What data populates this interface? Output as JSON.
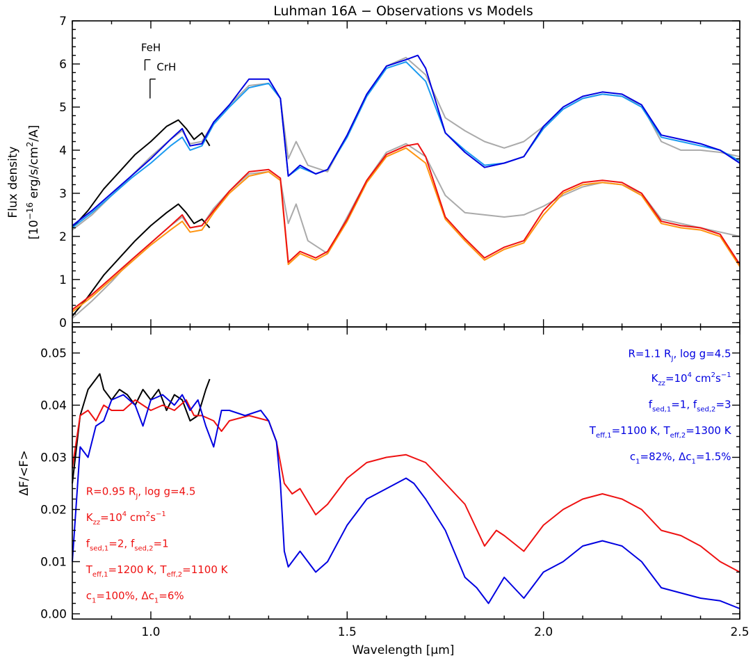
{
  "colors": {
    "obs": "#000000",
    "model_gray": "#aaaaaa",
    "blue": "#0000e0",
    "light_blue": "#1a9af0",
    "red": "#ee1111",
    "orange": "#ff9410"
  },
  "chart_data": [
    {
      "type": "line",
      "title": "Luhman 16A − Observations vs Models",
      "xlim": [
        0.8,
        2.5
      ],
      "ylim": [
        -0.1,
        7.0
      ],
      "ylabel_line1": "Flux density",
      "ylabel_line2_parts": [
        "[10",
        "−16",
        " erg/s/cm",
        "2",
        "/A]"
      ],
      "x_ticks": [
        1.0,
        1.5,
        2.0,
        2.5
      ],
      "y_ticks": [
        0,
        1,
        2,
        3,
        4,
        5,
        6,
        7
      ],
      "y_tick_labels": [
        "0",
        "1",
        "2",
        "3",
        "4",
        "5",
        "6",
        "7"
      ],
      "line_labels": [
        {
          "text": "FeH",
          "x": 0.975,
          "y": 6.3
        },
        {
          "text": "CrH",
          "x": 1.015,
          "y": 5.85
        }
      ],
      "series": [
        {
          "role": "model",
          "color_key": "model_gray",
          "x": [
            0.8,
            0.85,
            0.9,
            0.95,
            1.0,
            1.05,
            1.08,
            1.1,
            1.13,
            1.16,
            1.2,
            1.25,
            1.3,
            1.33,
            1.35,
            1.37,
            1.4,
            1.45,
            1.5,
            1.55,
            1.6,
            1.65,
            1.7,
            1.75,
            1.8,
            1.85,
            1.9,
            1.95,
            2.0,
            2.05,
            2.1,
            2.15,
            2.2,
            2.25,
            2.3,
            2.35,
            2.4,
            2.45,
            2.5
          ],
          "y": [
            2.15,
            2.5,
            2.95,
            3.4,
            3.85,
            4.25,
            4.45,
            4.15,
            4.2,
            4.65,
            5.05,
            5.5,
            5.55,
            5.2,
            3.8,
            4.2,
            3.65,
            3.5,
            4.35,
            5.3,
            5.95,
            6.15,
            5.75,
            4.75,
            4.45,
            4.2,
            4.05,
            4.2,
            4.55,
            4.95,
            5.2,
            5.3,
            5.25,
            5.05,
            4.2,
            4.0,
            4.0,
            3.95,
            3.85
          ]
        },
        {
          "role": "observation",
          "color_key": "obs",
          "x": [
            0.8,
            0.84,
            0.88,
            0.92,
            0.96,
            1.0,
            1.04,
            1.07,
            1.09,
            1.11,
            1.13,
            1.15
          ],
          "y": [
            2.2,
            2.6,
            3.1,
            3.5,
            3.9,
            4.2,
            4.55,
            4.7,
            4.5,
            4.25,
            4.4,
            4.1
          ]
        },
        {
          "role": "model",
          "color_key": "light_blue",
          "x": [
            0.8,
            0.85,
            0.9,
            0.95,
            1.0,
            1.05,
            1.08,
            1.1,
            1.13,
            1.16,
            1.2,
            1.25,
            1.3,
            1.33,
            1.35,
            1.38,
            1.42,
            1.45,
            1.5,
            1.55,
            1.6,
            1.65,
            1.7,
            1.75,
            1.8,
            1.85,
            1.9,
            1.95,
            2.0,
            2.05,
            2.1,
            2.15,
            2.2,
            2.25,
            2.3,
            2.35,
            2.4,
            2.45,
            2.5
          ],
          "y": [
            2.2,
            2.55,
            2.95,
            3.35,
            3.7,
            4.1,
            4.3,
            4.0,
            4.1,
            4.6,
            5.0,
            5.45,
            5.55,
            5.2,
            3.4,
            3.6,
            3.45,
            3.55,
            4.3,
            5.25,
            5.9,
            6.05,
            5.6,
            4.4,
            4.0,
            3.65,
            3.7,
            3.85,
            4.5,
            4.95,
            5.2,
            5.3,
            5.25,
            5.0,
            4.3,
            4.2,
            4.1,
            4.0,
            3.75
          ]
        },
        {
          "role": "model",
          "color_key": "blue",
          "x": [
            0.8,
            0.85,
            0.9,
            0.95,
            1.0,
            1.05,
            1.08,
            1.1,
            1.13,
            1.16,
            1.2,
            1.25,
            1.3,
            1.33,
            1.35,
            1.38,
            1.42,
            1.45,
            1.5,
            1.55,
            1.6,
            1.65,
            1.68,
            1.7,
            1.75,
            1.8,
            1.85,
            1.9,
            1.95,
            2.0,
            2.05,
            2.1,
            2.15,
            2.2,
            2.25,
            2.3,
            2.35,
            2.4,
            2.45,
            2.5
          ],
          "y": [
            2.25,
            2.6,
            3.0,
            3.4,
            3.8,
            4.25,
            4.5,
            4.1,
            4.15,
            4.65,
            5.05,
            5.65,
            5.65,
            5.2,
            3.4,
            3.65,
            3.45,
            3.55,
            4.35,
            5.3,
            5.95,
            6.1,
            6.2,
            5.9,
            4.4,
            3.95,
            3.6,
            3.7,
            3.85,
            4.55,
            5.0,
            5.25,
            5.35,
            5.3,
            5.05,
            4.35,
            4.25,
            4.15,
            4.0,
            3.7
          ]
        },
        {
          "role": "model",
          "color_key": "model_gray",
          "x": [
            0.8,
            0.85,
            0.9,
            0.95,
            1.0,
            1.05,
            1.08,
            1.1,
            1.13,
            1.16,
            1.2,
            1.25,
            1.3,
            1.33,
            1.35,
            1.37,
            1.4,
            1.45,
            1.5,
            1.55,
            1.6,
            1.65,
            1.7,
            1.75,
            1.8,
            1.85,
            1.9,
            1.95,
            2.0,
            2.05,
            2.1,
            2.15,
            2.2,
            2.25,
            2.3,
            2.35,
            2.4,
            2.45,
            2.5
          ],
          "y": [
            0.1,
            0.5,
            0.95,
            1.45,
            1.85,
            2.25,
            2.45,
            2.2,
            2.25,
            2.65,
            3.05,
            3.45,
            3.5,
            3.3,
            2.3,
            2.75,
            1.9,
            1.6,
            2.45,
            3.3,
            3.95,
            4.15,
            3.85,
            2.95,
            2.55,
            2.5,
            2.45,
            2.5,
            2.7,
            2.95,
            3.15,
            3.25,
            3.2,
            3.0,
            2.4,
            2.3,
            2.2,
            2.1,
            2.0
          ]
        },
        {
          "role": "observation",
          "color_key": "obs",
          "x": [
            0.8,
            0.84,
            0.88,
            0.92,
            0.96,
            1.0,
            1.04,
            1.07,
            1.09,
            1.11,
            1.13,
            1.15
          ],
          "y": [
            0.15,
            0.6,
            1.1,
            1.5,
            1.9,
            2.25,
            2.55,
            2.75,
            2.55,
            2.3,
            2.4,
            2.2
          ]
        },
        {
          "role": "model",
          "color_key": "orange",
          "x": [
            0.8,
            0.85,
            0.9,
            0.95,
            1.0,
            1.05,
            1.08,
            1.1,
            1.13,
            1.16,
            1.2,
            1.25,
            1.3,
            1.33,
            1.35,
            1.38,
            1.42,
            1.45,
            1.5,
            1.55,
            1.6,
            1.65,
            1.7,
            1.75,
            1.8,
            1.85,
            1.9,
            1.95,
            2.0,
            2.05,
            2.1,
            2.15,
            2.2,
            2.25,
            2.3,
            2.35,
            2.4,
            2.45,
            2.5
          ],
          "y": [
            0.25,
            0.6,
            1.0,
            1.4,
            1.8,
            2.15,
            2.35,
            2.1,
            2.15,
            2.55,
            3.0,
            3.4,
            3.5,
            3.3,
            1.35,
            1.6,
            1.45,
            1.6,
            2.35,
            3.25,
            3.85,
            4.05,
            3.7,
            2.4,
            1.9,
            1.45,
            1.7,
            1.85,
            2.5,
            3.0,
            3.2,
            3.25,
            3.2,
            2.95,
            2.3,
            2.2,
            2.15,
            2.0,
            1.3
          ]
        },
        {
          "role": "model",
          "color_key": "red",
          "x": [
            0.8,
            0.85,
            0.9,
            0.95,
            1.0,
            1.05,
            1.08,
            1.1,
            1.13,
            1.16,
            1.2,
            1.25,
            1.3,
            1.33,
            1.35,
            1.38,
            1.42,
            1.45,
            1.5,
            1.55,
            1.6,
            1.65,
            1.68,
            1.7,
            1.75,
            1.8,
            1.85,
            1.9,
            1.95,
            2.0,
            2.05,
            2.1,
            2.15,
            2.2,
            2.25,
            2.3,
            2.35,
            2.4,
            2.45,
            2.5
          ],
          "y": [
            0.3,
            0.65,
            1.05,
            1.45,
            1.85,
            2.25,
            2.5,
            2.2,
            2.25,
            2.6,
            3.05,
            3.5,
            3.55,
            3.35,
            1.4,
            1.65,
            1.5,
            1.65,
            2.4,
            3.3,
            3.9,
            4.1,
            4.15,
            3.85,
            2.45,
            1.95,
            1.5,
            1.75,
            1.9,
            2.6,
            3.05,
            3.25,
            3.3,
            3.25,
            3.0,
            2.35,
            2.25,
            2.2,
            2.05,
            1.35
          ]
        }
      ]
    },
    {
      "type": "line",
      "xlim": [
        0.8,
        2.5
      ],
      "ylim": [
        -0.001,
        0.055
      ],
      "xlabel_parts": [
        "Wavelength [",
        "μ",
        "m]"
      ],
      "ylabel": "ΔF/<F>",
      "x_ticks": [
        1.0,
        1.5,
        2.0,
        2.5
      ],
      "x_tick_labels": [
        "1.0",
        "1.5",
        "2.0",
        "2.5"
      ],
      "y_ticks": [
        0.0,
        0.01,
        0.02,
        0.03,
        0.04,
        0.05
      ],
      "y_tick_labels": [
        "0.00",
        "0.01",
        "0.02",
        "0.03",
        "0.04",
        "0.05"
      ],
      "series": [
        {
          "role": "observation",
          "color_key": "obs",
          "x": [
            0.8,
            0.82,
            0.84,
            0.86,
            0.87,
            0.88,
            0.9,
            0.92,
            0.94,
            0.96,
            0.98,
            1.0,
            1.02,
            1.04,
            1.06,
            1.08,
            1.1,
            1.12,
            1.14,
            1.15
          ],
          "y": [
            0.025,
            0.038,
            0.043,
            0.045,
            0.046,
            0.043,
            0.041,
            0.043,
            0.042,
            0.04,
            0.043,
            0.041,
            0.043,
            0.039,
            0.042,
            0.041,
            0.037,
            0.038,
            0.043,
            0.045
          ]
        },
        {
          "role": "model",
          "color_key": "red",
          "x": [
            0.8,
            0.82,
            0.84,
            0.86,
            0.88,
            0.9,
            0.93,
            0.96,
            1.0,
            1.03,
            1.06,
            1.09,
            1.11,
            1.13,
            1.16,
            1.18,
            1.2,
            1.25,
            1.3,
            1.32,
            1.34,
            1.36,
            1.38,
            1.42,
            1.45,
            1.5,
            1.55,
            1.6,
            1.65,
            1.7,
            1.75,
            1.8,
            1.85,
            1.88,
            1.9,
            1.95,
            2.0,
            2.05,
            2.1,
            2.15,
            2.2,
            2.25,
            2.3,
            2.35,
            2.4,
            2.45,
            2.5
          ],
          "y": [
            0.028,
            0.038,
            0.039,
            0.037,
            0.04,
            0.039,
            0.039,
            0.041,
            0.039,
            0.04,
            0.039,
            0.041,
            0.038,
            0.038,
            0.037,
            0.035,
            0.037,
            0.038,
            0.037,
            0.033,
            0.025,
            0.023,
            0.024,
            0.019,
            0.021,
            0.026,
            0.029,
            0.03,
            0.0305,
            0.029,
            0.025,
            0.021,
            0.013,
            0.016,
            0.015,
            0.012,
            0.017,
            0.02,
            0.022,
            0.023,
            0.022,
            0.02,
            0.016,
            0.015,
            0.013,
            0.01,
            0.008
          ]
        },
        {
          "role": "model",
          "color_key": "blue",
          "x": [
            0.8,
            0.82,
            0.84,
            0.86,
            0.88,
            0.9,
            0.93,
            0.96,
            0.98,
            1.0,
            1.03,
            1.06,
            1.08,
            1.1,
            1.12,
            1.14,
            1.16,
            1.18,
            1.2,
            1.24,
            1.28,
            1.3,
            1.32,
            1.33,
            1.34,
            1.35,
            1.38,
            1.42,
            1.45,
            1.5,
            1.55,
            1.6,
            1.65,
            1.67,
            1.7,
            1.75,
            1.8,
            1.83,
            1.86,
            1.9,
            1.95,
            2.0,
            2.05,
            2.1,
            2.15,
            2.2,
            2.25,
            2.3,
            2.35,
            2.4,
            2.45,
            2.5
          ],
          "y": [
            0.01,
            0.032,
            0.03,
            0.036,
            0.037,
            0.041,
            0.042,
            0.04,
            0.036,
            0.041,
            0.042,
            0.04,
            0.042,
            0.039,
            0.041,
            0.036,
            0.032,
            0.039,
            0.039,
            0.038,
            0.039,
            0.037,
            0.033,
            0.025,
            0.012,
            0.009,
            0.012,
            0.008,
            0.01,
            0.017,
            0.022,
            0.024,
            0.026,
            0.025,
            0.022,
            0.016,
            0.007,
            0.005,
            0.002,
            0.007,
            0.003,
            0.008,
            0.01,
            0.013,
            0.014,
            0.013,
            0.01,
            0.005,
            0.004,
            0.003,
            0.0025,
            0.001
          ]
        }
      ],
      "annotations_blue": [
        {
          "id": "blue1",
          "x": 2.478,
          "y": 0.0492,
          "text": "R=1.1 R<sub>J</sub>, log g=4.5"
        },
        {
          "id": "blue2",
          "x": 2.478,
          "y": 0.0445,
          "text": "K<sub>zz</sub>=10<sup>4</sup> cm<sup>2</sup>s<sup>−1</sup>"
        },
        {
          "id": "blue3",
          "x": 2.478,
          "y": 0.0395,
          "text": "f<sub>sed,1</sub>=1, f<sub>sed,2</sub>=3"
        },
        {
          "id": "blue4",
          "x": 2.478,
          "y": 0.0345,
          "text": "T<sub>eff,1</sub>=1100 K, T<sub>eff,2</sub>=1300 K"
        },
        {
          "id": "blue5",
          "x": 2.478,
          "y": 0.0295,
          "text": "c<sub>1</sub>=82%, Δc<sub>1</sub>=1.5%"
        }
      ],
      "annotations_red": [
        {
          "id": "red1",
          "x": 0.835,
          "y": 0.0228,
          "text": "R=0.95 R<sub>J</sub>, log g=4.5"
        },
        {
          "id": "red2",
          "x": 0.835,
          "y": 0.0178,
          "text": "K<sub>zz</sub>=10<sup>4</sup> cm<sup>2</sup>s<sup>−1</sup>"
        },
        {
          "id": "red3",
          "x": 0.835,
          "y": 0.0128,
          "text": "f<sub>sed,1</sub>=2, f<sub>sed,2</sub>=1"
        },
        {
          "id": "red4",
          "x": 0.835,
          "y": 0.0078,
          "text": "T<sub>eff,1</sub>=1200 K, T<sub>eff,2</sub>=1100 K"
        },
        {
          "id": "red5",
          "x": 0.835,
          "y": 0.0028,
          "text": "c<sub>1</sub>=100%, Δc<sub>1</sub>=6%"
        }
      ]
    }
  ]
}
